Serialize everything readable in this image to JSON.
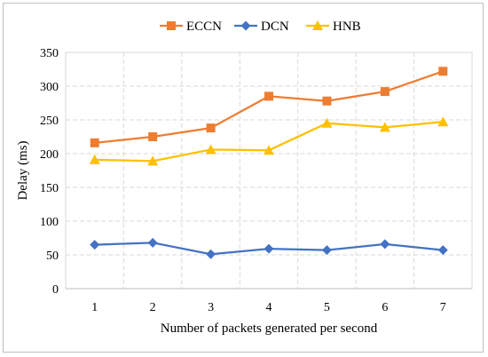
{
  "chart_data": {
    "type": "line",
    "title": "",
    "xlabel": "Number of  packets generated per second",
    "ylabel": "Delay (ms)",
    "categories": [
      "1",
      "2",
      "3",
      "4",
      "5",
      "6",
      "7"
    ],
    "ylim": [
      0,
      350
    ],
    "yticks": [
      "0",
      "50",
      "100",
      "150",
      "200",
      "250",
      "300",
      "350"
    ],
    "grid": true,
    "legend_position": "top-center",
    "series": [
      {
        "name": "ECCN",
        "color": "#ED7D31",
        "marker": "square",
        "values": [
          216,
          225,
          238,
          285,
          278,
          292,
          322
        ]
      },
      {
        "name": "DCN",
        "color": "#4472C4",
        "marker": "diamond",
        "values": [
          65,
          68,
          51,
          59,
          57,
          66,
          57
        ]
      },
      {
        "name": "HNB",
        "color": "#FFC000",
        "marker": "triangle",
        "values": [
          191,
          189,
          206,
          205,
          245,
          239,
          247
        ]
      }
    ]
  }
}
